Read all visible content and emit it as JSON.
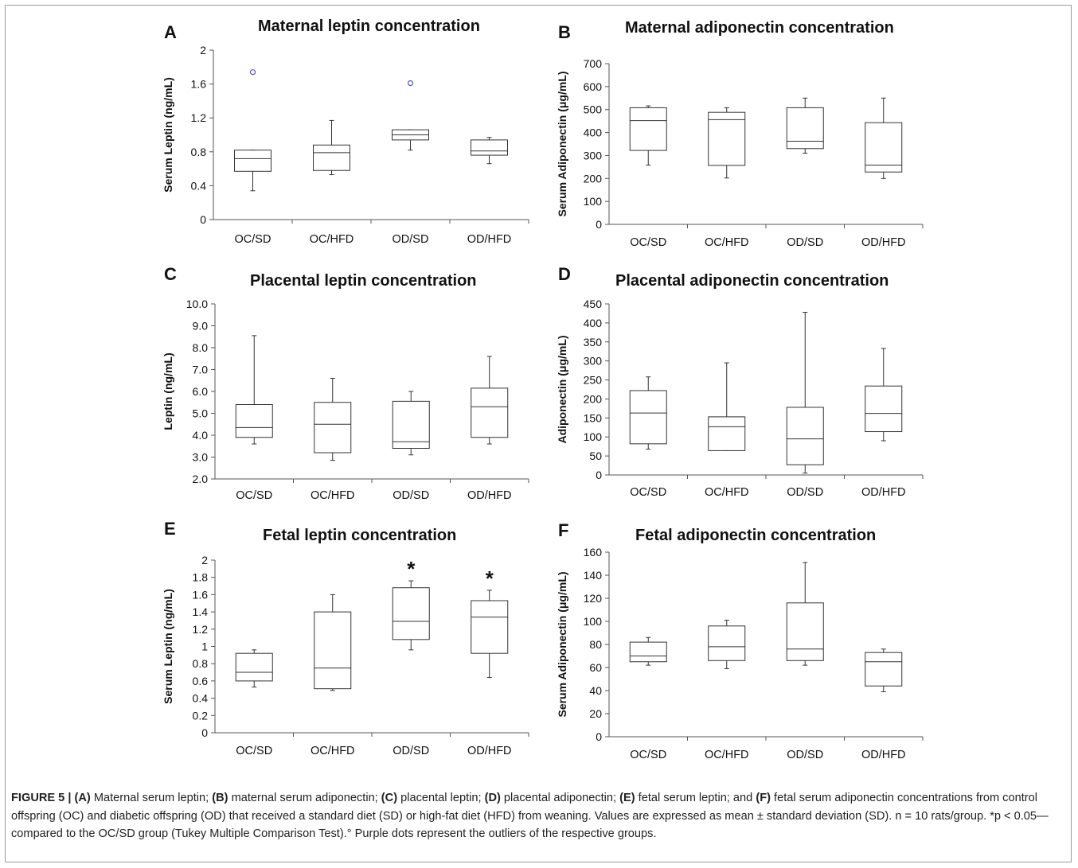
{
  "chart_data": [
    {
      "type": "box",
      "panel": "A",
      "title": "Maternal leptin concentration",
      "ylabel": "Serum Leptin (ng/mL)",
      "ylim": [
        0,
        2
      ],
      "yticks": [
        "0",
        "0.4",
        "0.8",
        "1.2",
        "1.6",
        "2"
      ],
      "categories": [
        "OC/SD",
        "OC/HFD",
        "OD/SD",
        "OD/HFD"
      ],
      "boxes": [
        {
          "min": 0.34,
          "q1": 0.57,
          "median": 0.72,
          "q3": 0.82,
          "max": 0.82,
          "outliers": [
            1.74
          ],
          "star": false
        },
        {
          "min": 0.53,
          "q1": 0.58,
          "median": 0.79,
          "q3": 0.88,
          "max": 1.17,
          "outliers": [],
          "star": false
        },
        {
          "min": 0.82,
          "q1": 0.94,
          "median": 1.0,
          "q3": 1.06,
          "max": 1.06,
          "outliers": [
            1.61
          ],
          "star": false
        },
        {
          "min": 0.66,
          "q1": 0.76,
          "median": 0.81,
          "q3": 0.94,
          "max": 0.97,
          "outliers": [],
          "star": false
        }
      ]
    },
    {
      "type": "box",
      "panel": "B",
      "title": "Maternal adiponectin concentration",
      "ylabel": "Serum Adiponectin (μg/mL)",
      "ylim": [
        0,
        700
      ],
      "yticks": [
        "0",
        "100",
        "200",
        "300",
        "400",
        "500",
        "600",
        "700"
      ],
      "categories": [
        "OC/SD",
        "OC/HFD",
        "OD/SD",
        "OD/HFD"
      ],
      "boxes": [
        {
          "min": 258,
          "q1": 322,
          "median": 452,
          "q3": 508,
          "max": 516,
          "outliers": [],
          "star": false
        },
        {
          "min": 202,
          "q1": 257,
          "median": 456,
          "q3": 488,
          "max": 508,
          "outliers": [],
          "star": false
        },
        {
          "min": 310,
          "q1": 330,
          "median": 362,
          "q3": 508,
          "max": 550,
          "outliers": [],
          "star": false
        },
        {
          "min": 200,
          "q1": 228,
          "median": 258,
          "q3": 443,
          "max": 550,
          "outliers": [],
          "star": false
        }
      ]
    },
    {
      "type": "box",
      "panel": "C",
      "title": "Placental leptin concentration",
      "ylabel": "Leptin (ng/mL)",
      "ylim": [
        2,
        10
      ],
      "yticks": [
        "2.0",
        "3.0",
        "4.0",
        "5.0",
        "6.0",
        "7.0",
        "8.0",
        "9.0",
        "10.0"
      ],
      "categories": [
        "OC/SD",
        "OC/HFD",
        "OD/SD",
        "OD/HFD"
      ],
      "boxes": [
        {
          "min": 3.6,
          "q1": 3.9,
          "median": 4.35,
          "q3": 5.4,
          "max": 8.55,
          "outliers": [],
          "star": false
        },
        {
          "min": 2.85,
          "q1": 3.2,
          "median": 4.5,
          "q3": 5.5,
          "max": 6.6,
          "outliers": [],
          "star": false
        },
        {
          "min": 3.1,
          "q1": 3.4,
          "median": 3.7,
          "q3": 5.55,
          "max": 6.0,
          "outliers": [],
          "star": false
        },
        {
          "min": 3.6,
          "q1": 3.9,
          "median": 5.3,
          "q3": 6.15,
          "max": 7.6,
          "outliers": [],
          "star": false
        }
      ]
    },
    {
      "type": "box",
      "panel": "D",
      "title": "Placental adiponectin concentration",
      "ylabel": "Adiponectin (μg/mL)",
      "ylim": [
        0,
        450
      ],
      "yticks": [
        "0",
        "50",
        "100",
        "150",
        "200",
        "250",
        "300",
        "350",
        "400",
        "450"
      ],
      "categories": [
        "OC/SD",
        "OC/HFD",
        "OD/SD",
        "OD/HFD"
      ],
      "boxes": [
        {
          "min": 68,
          "q1": 82,
          "median": 163,
          "q3": 222,
          "max": 258,
          "outliers": [],
          "star": false
        },
        {
          "min": 64,
          "q1": 64,
          "median": 127,
          "q3": 153,
          "max": 295,
          "outliers": [],
          "star": false
        },
        {
          "min": 5,
          "q1": 27,
          "median": 95,
          "q3": 178,
          "max": 428,
          "outliers": [],
          "star": false
        },
        {
          "min": 90,
          "q1": 114,
          "median": 162,
          "q3": 234,
          "max": 333,
          "outliers": [],
          "star": false
        }
      ]
    },
    {
      "type": "box",
      "panel": "E",
      "title": "Fetal leptin concentration",
      "ylabel": "Serum Leptin (ng/mL)",
      "ylim": [
        0,
        2
      ],
      "yticks": [
        "0",
        "0.2",
        "0.4",
        "0.6",
        "0.8",
        "1",
        "1.2",
        "1.4",
        "1.6",
        "1.8",
        "2"
      ],
      "categories": [
        "OC/SD",
        "OC/HFD",
        "OD/SD",
        "OD/HFD"
      ],
      "boxes": [
        {
          "min": 0.53,
          "q1": 0.6,
          "median": 0.7,
          "q3": 0.92,
          "max": 0.96,
          "outliers": [],
          "star": false
        },
        {
          "min": 0.49,
          "q1": 0.51,
          "median": 0.75,
          "q3": 1.4,
          "max": 1.6,
          "outliers": [],
          "star": false
        },
        {
          "min": 0.96,
          "q1": 1.08,
          "median": 1.29,
          "q3": 1.68,
          "max": 1.76,
          "outliers": [],
          "star": true
        },
        {
          "min": 0.64,
          "q1": 0.92,
          "median": 1.34,
          "q3": 1.53,
          "max": 1.65,
          "outliers": [],
          "star": true
        }
      ]
    },
    {
      "type": "box",
      "panel": "F",
      "title": "Fetal adiponectin concentration",
      "ylabel": "Serum Adiponectin (μg/mL)",
      "ylim": [
        0,
        160
      ],
      "yticks": [
        "0",
        "20",
        "40",
        "60",
        "80",
        "100",
        "120",
        "140",
        "160"
      ],
      "categories": [
        "OC/SD",
        "OC/HFD",
        "OD/SD",
        "OD/HFD"
      ],
      "boxes": [
        {
          "min": 62,
          "q1": 65,
          "median": 70,
          "q3": 82,
          "max": 86,
          "outliers": [],
          "star": false
        },
        {
          "min": 59,
          "q1": 66,
          "median": 78,
          "q3": 96,
          "max": 101,
          "outliers": [],
          "star": false
        },
        {
          "min": 62,
          "q1": 66,
          "median": 76,
          "q3": 116,
          "max": 151,
          "outliers": [],
          "star": false
        },
        {
          "min": 39,
          "q1": 44,
          "median": 65,
          "q3": 73,
          "max": 76,
          "outliers": [],
          "star": false
        }
      ]
    }
  ],
  "colors": {
    "line": "#333333",
    "outlier": "#4a55d6",
    "text": "#111111"
  },
  "star_symbol": "*",
  "caption": {
    "figure_label": "FIGURE 5 |",
    "parts": [
      {
        "b": "(A)",
        "t": " Maternal serum leptin; "
      },
      {
        "b": "(B)",
        "t": " maternal serum adiponectin; "
      },
      {
        "b": "(C)",
        "t": " placental leptin; "
      },
      {
        "b": "(D)",
        "t": " placental adiponectin; "
      },
      {
        "b": "(E)",
        "t": " fetal serum leptin; and "
      },
      {
        "b": "(F)",
        "t": " fetal serum adiponectin concentrations from control offspring (OC) and diabetic offspring (OD) that received a standard diet (SD) or high-fat diet (HFD) from weaning. Values are expressed as mean ± standard deviation (SD). n = 10 rats/group. *p < 0.05—compared to the OC/SD group (Tukey Multiple Comparison Test).° Purple dots represent the outliers of the respective groups."
      }
    ]
  }
}
